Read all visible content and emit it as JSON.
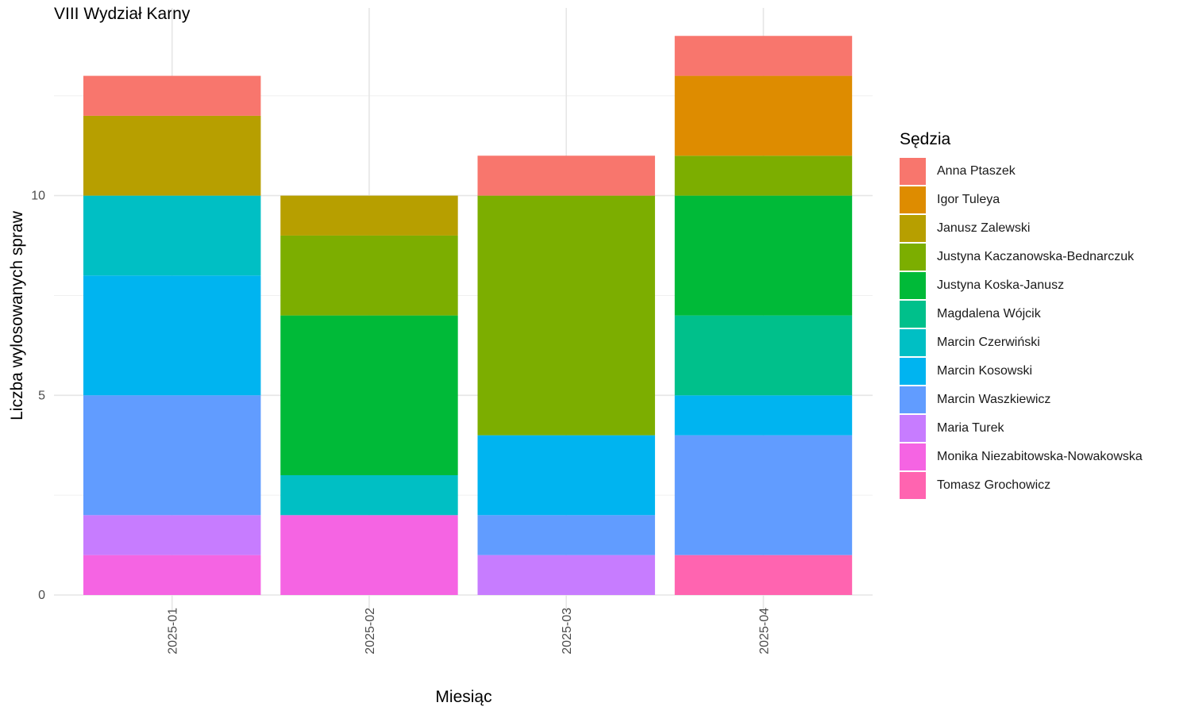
{
  "chart_data": {
    "type": "bar",
    "stacked": true,
    "title": "VIII Wydział Karny",
    "xlabel": "Miesiąc",
    "ylabel": "Liczba wylosowanych spraw",
    "legend_title": "Sędzia",
    "legend_position": "right",
    "grid": true,
    "ylim": [
      0,
      14.7
    ],
    "y_ticks": [
      0,
      5,
      10
    ],
    "categories": [
      "2025-01",
      "2025-02",
      "2025-03",
      "2025-04"
    ],
    "series": [
      {
        "name": "Anna Ptaszek",
        "color": "#F8766D",
        "values": [
          1,
          0,
          1,
          1
        ]
      },
      {
        "name": "Igor Tuleya",
        "color": "#DE8C00",
        "values": [
          0,
          0,
          0,
          2
        ]
      },
      {
        "name": "Janusz Zalewski",
        "color": "#B79F00",
        "values": [
          2,
          1,
          0,
          0
        ]
      },
      {
        "name": "Justyna Kaczanowska-Bednarczuk",
        "color": "#7CAE00",
        "values": [
          0,
          2,
          6,
          1
        ]
      },
      {
        "name": "Justyna Koska-Janusz",
        "color": "#00BA38",
        "values": [
          0,
          4,
          0,
          3
        ]
      },
      {
        "name": "Magdalena Wójcik",
        "color": "#00C08B",
        "values": [
          0,
          0,
          0,
          2
        ]
      },
      {
        "name": "Marcin Czerwiński",
        "color": "#00BFC4",
        "values": [
          2,
          1,
          0,
          0
        ]
      },
      {
        "name": "Marcin Kosowski",
        "color": "#00B4F0",
        "values": [
          3,
          0,
          2,
          1
        ]
      },
      {
        "name": "Marcin Waszkiewicz",
        "color": "#619CFF",
        "values": [
          3,
          0,
          1,
          3
        ]
      },
      {
        "name": "Maria Turek",
        "color": "#C77CFF",
        "values": [
          1,
          0,
          1,
          0
        ]
      },
      {
        "name": "Monika Niezabitowska-Nowakowska",
        "color": "#F564E3",
        "values": [
          1,
          2,
          0,
          0
        ]
      },
      {
        "name": "Tomasz Grochowicz",
        "color": "#FF64B0",
        "values": [
          0,
          0,
          0,
          1
        ]
      }
    ]
  }
}
